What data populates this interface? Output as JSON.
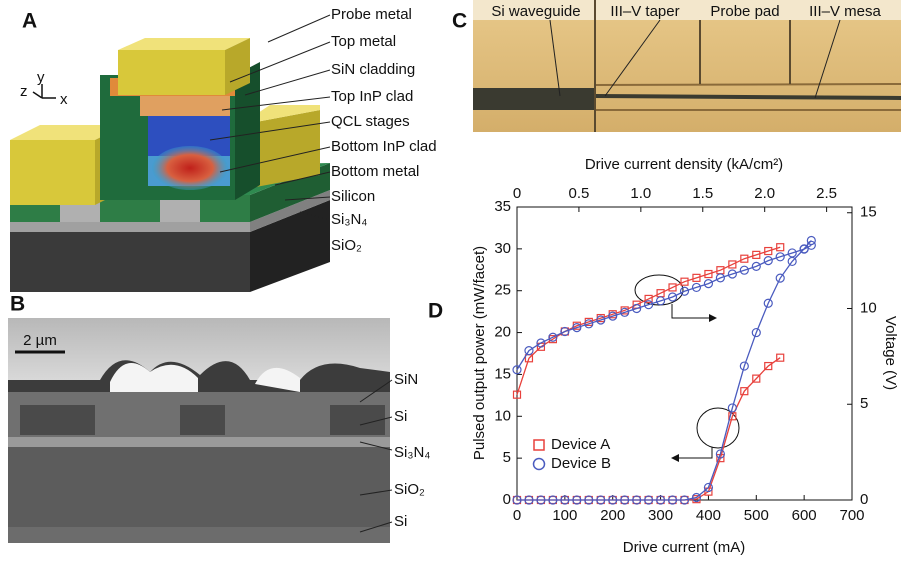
{
  "panels": {
    "A": {
      "label": "A",
      "axes": [
        "z",
        "y",
        "x"
      ],
      "layers": [
        "Probe metal",
        "Top metal",
        "SiN cladding",
        "Top InP clad",
        "QCL stages",
        "Bottom InP clad",
        "Bottom metal",
        "Silicon",
        "Si₃N₄",
        "SiO₂"
      ]
    },
    "B": {
      "label": "B",
      "scale_bar": "2 µm",
      "layers": [
        "SiN",
        "Si",
        "Si₃N₄",
        "SiO₂",
        "Si"
      ]
    },
    "C": {
      "label": "C",
      "regions": [
        "Si waveguide",
        "III–V taper",
        "Probe pad",
        "III–V mesa"
      ]
    }
  },
  "chart_data": {
    "type": "line",
    "label": "D",
    "xlabel": "Drive current (mA)",
    "ylabel": "Pulsed output power (mW/facet)",
    "y2label": "Voltage (V)",
    "x2label": "Drive current density (kA/cm²)",
    "xlim": [
      0,
      700
    ],
    "xticks": [
      0,
      100,
      200,
      300,
      400,
      500,
      600,
      700
    ],
    "x2lim": [
      0,
      2.705
    ],
    "x2ticks": [
      0,
      0.5,
      {
        "value": 1,
        "label": "1.0"
      },
      1.5,
      {
        "value": 2,
        "label": "2.0"
      },
      2.5
    ],
    "ylim": [
      0,
      35
    ],
    "yticks": [
      0,
      5,
      10,
      15,
      20,
      25,
      30,
      35
    ],
    "y2lim": [
      0,
      15.3
    ],
    "y2ticks": [
      0,
      5,
      10,
      15
    ],
    "legend": "lower left",
    "series": [
      {
        "name": "Device A",
        "color": "#e8413c",
        "marker": "square",
        "x": [
          0,
          25,
          50,
          75,
          100,
          125,
          150,
          175,
          200,
          225,
          250,
          275,
          300,
          325,
          350,
          375,
          400,
          425,
          450,
          475,
          500,
          525,
          550
        ],
        "values": [
          0,
          0,
          0,
          0,
          0,
          0,
          0,
          0,
          0,
          0,
          0,
          0,
          0,
          0,
          0,
          0.1,
          1,
          5,
          10,
          13,
          14.5,
          16,
          17
        ],
        "voltage": [
          5.5,
          7.4,
          8.0,
          8.4,
          8.8,
          9.1,
          9.3,
          9.5,
          9.7,
          9.9,
          10.2,
          10.5,
          10.8,
          11.1,
          11.4,
          11.6,
          11.8,
          12.0,
          12.3,
          12.6,
          12.8,
          13.0,
          13.2
        ]
      },
      {
        "name": "Device B",
        "color": "#4a5bbf",
        "marker": "circle",
        "x": [
          0,
          25,
          50,
          75,
          100,
          125,
          150,
          175,
          200,
          225,
          250,
          275,
          300,
          325,
          350,
          375,
          400,
          425,
          450,
          475,
          500,
          525,
          550,
          575,
          600,
          615
        ],
        "values": [
          0,
          0,
          0,
          0,
          0,
          0,
          0,
          0,
          0,
          0,
          0,
          0,
          0,
          0,
          0,
          0.3,
          1.5,
          5.5,
          11,
          16,
          20,
          23.5,
          26.5,
          28.5,
          30,
          31
        ],
        "voltage": [
          6.8,
          7.8,
          8.2,
          8.5,
          8.8,
          9.0,
          9.2,
          9.4,
          9.6,
          9.8,
          10.0,
          10.2,
          10.4,
          10.6,
          10.9,
          11.1,
          11.3,
          11.6,
          11.8,
          12.0,
          12.2,
          12.5,
          12.7,
          12.9,
          13.1,
          13.3
        ]
      }
    ]
  }
}
